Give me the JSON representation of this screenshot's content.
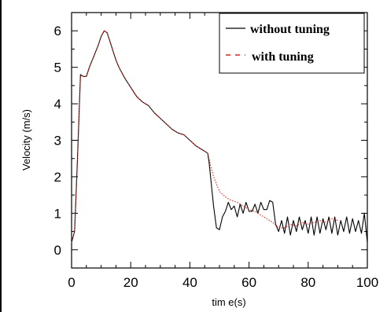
{
  "chart_data": {
    "type": "line",
    "title": "",
    "xlabel": "tim e(s)",
    "ylabel": "Velocity (m/s)",
    "xlim": [
      0,
      100
    ],
    "ylim": [
      -0.5,
      6.5
    ],
    "x_ticks": [
      "0",
      "20",
      "40",
      "60",
      "80",
      "100"
    ],
    "y_ticks": [
      "0",
      "1",
      "2",
      "3",
      "4",
      "5",
      "6"
    ],
    "grid": false,
    "legend_position": "top-right",
    "series": [
      {
        "name": "without tuning",
        "color": "#000000",
        "style": "solid",
        "x": [
          0,
          1,
          2,
          3,
          4,
          5,
          6,
          7,
          8,
          9,
          10,
          11,
          12,
          13,
          14,
          15,
          16,
          18,
          20,
          22,
          24,
          26,
          28,
          30,
          32,
          34,
          36,
          38,
          40,
          42,
          44,
          46,
          46.5,
          47,
          48,
          49,
          50,
          51,
          52,
          53,
          54,
          55,
          56,
          57,
          58,
          59,
          60,
          61,
          62,
          63,
          64,
          65,
          66,
          67,
          68,
          69,
          70,
          71,
          72,
          73,
          74,
          75,
          76,
          77,
          78,
          79,
          80,
          81,
          82,
          83,
          84,
          85,
          86,
          87,
          88,
          89,
          90,
          91,
          92,
          93,
          94,
          95,
          96,
          97,
          98,
          99,
          100
        ],
        "y": [
          0.2,
          0.5,
          2.5,
          4.8,
          4.75,
          4.75,
          5.0,
          5.2,
          5.4,
          5.6,
          5.85,
          6.0,
          5.95,
          5.7,
          5.45,
          5.2,
          5.0,
          4.7,
          4.45,
          4.2,
          4.05,
          3.95,
          3.75,
          3.6,
          3.45,
          3.3,
          3.2,
          3.15,
          3.0,
          2.85,
          2.75,
          2.65,
          2.4,
          2.0,
          1.2,
          0.6,
          0.55,
          0.9,
          1.05,
          1.3,
          1.1,
          1.2,
          0.9,
          1.25,
          1.0,
          1.3,
          1.05,
          1.05,
          1.25,
          1.0,
          1.3,
          1.1,
          1.1,
          1.35,
          1.3,
          0.7,
          0.5,
          0.8,
          0.45,
          0.9,
          0.4,
          0.8,
          0.5,
          0.9,
          0.55,
          0.8,
          0.45,
          0.9,
          0.4,
          0.9,
          0.45,
          0.85,
          0.55,
          0.9,
          0.45,
          0.9,
          0.4,
          0.8,
          0.5,
          0.9,
          0.45,
          0.85,
          0.5,
          0.8,
          0.45,
          1.0,
          0.2
        ]
      },
      {
        "name": "with tuning",
        "color": "#e02020",
        "style": "dotted",
        "x": [
          0,
          1,
          2,
          3,
          4,
          5,
          6,
          7,
          8,
          9,
          10,
          11,
          12,
          13,
          14,
          15,
          16,
          18,
          20,
          22,
          24,
          26,
          28,
          30,
          32,
          34,
          36,
          38,
          40,
          42,
          44,
          46,
          46.5,
          47,
          48,
          50,
          52,
          54,
          56,
          58,
          60,
          62,
          64,
          66,
          68,
          70,
          72,
          74,
          76,
          78,
          80,
          82,
          84,
          86,
          88,
          90
        ],
        "y": [
          0.2,
          0.5,
          2.4,
          4.75,
          4.75,
          4.75,
          5.0,
          5.2,
          5.4,
          5.6,
          5.85,
          6.0,
          5.95,
          5.7,
          5.45,
          5.2,
          5.0,
          4.7,
          4.45,
          4.2,
          4.05,
          3.95,
          3.75,
          3.6,
          3.45,
          3.3,
          3.2,
          3.15,
          3.0,
          2.85,
          2.75,
          2.65,
          2.5,
          2.3,
          2.0,
          1.6,
          1.45,
          1.35,
          1.3,
          1.2,
          1.1,
          1.05,
          0.95,
          0.85,
          0.75,
          0.6,
          0.6,
          0.7,
          0.65,
          0.75,
          0.7,
          0.75,
          0.8,
          0.75,
          0.85,
          0.8
        ]
      }
    ]
  }
}
